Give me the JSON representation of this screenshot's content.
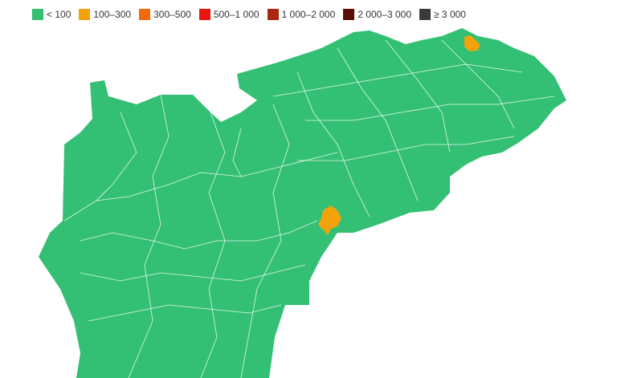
{
  "legend": {
    "items": [
      {
        "label": "< 100",
        "color": "#33c074"
      },
      {
        "label": "100–300",
        "color": "#f3a20c"
      },
      {
        "label": "300–500",
        "color": "#f2680c"
      },
      {
        "label": "500–1 000",
        "color": "#e8160c"
      },
      {
        "label": "1 000–2 000",
        "color": "#a9260f"
      },
      {
        "label": "2 000–3 000",
        "color": "#5c0b05"
      },
      {
        "label": "≥ 3 000",
        "color": "#3b3a3a"
      }
    ]
  }
}
